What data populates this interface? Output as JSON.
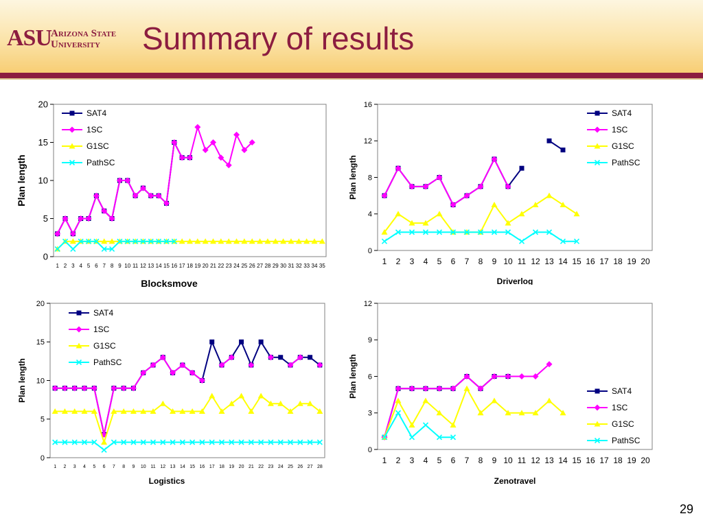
{
  "slide": {
    "title": "Summary of results",
    "page_number": "29"
  },
  "logo": {
    "initials": "ASU",
    "line1": "Arizona State",
    "line2": "University"
  },
  "colors": {
    "SAT4": "#000080",
    "1SC": "#ff00ff",
    "G1SC": "#ffff00",
    "PathSC": "#00ffff",
    "brand": "#8c1d40"
  },
  "chart_data": [
    {
      "type": "line",
      "title": "Blocksmove",
      "ylabel": "Plan length",
      "xlabel": "",
      "ylim": [
        0,
        20
      ],
      "yticks": [
        0,
        5,
        10,
        15,
        20
      ],
      "categories": [
        "1",
        "2",
        "3",
        "4",
        "5",
        "6",
        "7",
        "8",
        "9",
        "10",
        "11",
        "12",
        "13",
        "14",
        "15",
        "16",
        "17",
        "18",
        "19",
        "20",
        "21",
        "22",
        "23",
        "24",
        "25",
        "26",
        "27",
        "28",
        "29",
        "30",
        "31",
        "32",
        "33",
        "34",
        "35"
      ],
      "legend": "top-left",
      "grid": false,
      "series": [
        {
          "name": "SAT4",
          "values": [
            3,
            5,
            3,
            5,
            5,
            8,
            6,
            5,
            10,
            10,
            8,
            9,
            8,
            8,
            7,
            15,
            13,
            13,
            null,
            null,
            null,
            null,
            null,
            null,
            null,
            null,
            null,
            null,
            null,
            null,
            null,
            null,
            null,
            null,
            null
          ]
        },
        {
          "name": "1SC",
          "values": [
            3,
            5,
            3,
            5,
            5,
            8,
            6,
            5,
            10,
            10,
            8,
            9,
            8,
            8,
            7,
            15,
            13,
            13,
            17,
            14,
            15,
            13,
            12,
            16,
            14,
            15,
            null,
            null,
            null,
            null,
            null,
            null,
            null,
            null,
            null
          ]
        },
        {
          "name": "G1SC",
          "values": [
            1,
            2,
            2,
            2,
            2,
            2,
            2,
            2,
            2,
            2,
            2,
            2,
            2,
            2,
            2,
            2,
            2,
            2,
            2,
            2,
            2,
            2,
            2,
            2,
            2,
            2,
            2,
            2,
            2,
            2,
            2,
            2,
            2,
            2,
            2
          ]
        },
        {
          "name": "PathSC",
          "values": [
            1,
            2,
            1,
            2,
            2,
            2,
            1,
            1,
            2,
            2,
            2,
            2,
            2,
            2,
            2,
            2,
            null,
            null,
            null,
            null,
            null,
            null,
            null,
            null,
            null,
            null,
            null,
            null,
            null,
            null,
            null,
            null,
            null,
            null,
            null
          ]
        }
      ]
    },
    {
      "type": "line",
      "title": "Driverlog",
      "ylabel": "Plan length",
      "xlabel": "",
      "ylim": [
        0,
        16
      ],
      "yticks": [
        0,
        4,
        8,
        12,
        16
      ],
      "categories": [
        "1",
        "2",
        "3",
        "4",
        "5",
        "6",
        "7",
        "8",
        "9",
        "10",
        "11",
        "12",
        "13",
        "14",
        "15",
        "16",
        "17",
        "18",
        "19",
        "20"
      ],
      "legend": "top-right",
      "grid": false,
      "series": [
        {
          "name": "SAT4",
          "values": [
            6,
            9,
            7,
            7,
            8,
            5,
            6,
            7,
            10,
            7,
            9,
            null,
            12,
            11,
            null,
            null,
            null,
            null,
            null,
            null
          ]
        },
        {
          "name": "1SC",
          "values": [
            6,
            9,
            7,
            7,
            8,
            5,
            6,
            7,
            10,
            7,
            null,
            null,
            null,
            null,
            null,
            null,
            null,
            null,
            null,
            null
          ]
        },
        {
          "name": "G1SC",
          "values": [
            2,
            4,
            3,
            3,
            4,
            2,
            2,
            2,
            5,
            3,
            4,
            5,
            6,
            5,
            4,
            null,
            null,
            null,
            null,
            null
          ]
        },
        {
          "name": "PathSC",
          "values": [
            1,
            2,
            2,
            2,
            2,
            2,
            2,
            2,
            2,
            2,
            1,
            2,
            2,
            1,
            1,
            null,
            null,
            null,
            null,
            null
          ]
        }
      ]
    },
    {
      "type": "line",
      "title": "Logistics",
      "ylabel": "Plan length",
      "xlabel": "",
      "ylim": [
        0,
        20
      ],
      "yticks": [
        0,
        5,
        10,
        15,
        20
      ],
      "categories": [
        "1",
        "2",
        "3",
        "4",
        "5",
        "6",
        "7",
        "8",
        "9",
        "10",
        "11",
        "12",
        "13",
        "14",
        "15",
        "16",
        "17",
        "18",
        "19",
        "20",
        "21",
        "22",
        "23",
        "24",
        "25",
        "26",
        "27",
        "28"
      ],
      "legend": "top-left",
      "grid": false,
      "series": [
        {
          "name": "SAT4",
          "values": [
            9,
            9,
            9,
            9,
            9,
            3,
            9,
            9,
            9,
            11,
            12,
            13,
            11,
            12,
            11,
            10,
            15,
            12,
            13,
            15,
            12,
            15,
            13,
            13,
            12,
            13,
            13,
            12
          ]
        },
        {
          "name": "1SC",
          "values": [
            9,
            9,
            9,
            9,
            9,
            3,
            9,
            9,
            9,
            11,
            12,
            13,
            11,
            12,
            11,
            10,
            null,
            12,
            13,
            null,
            12,
            null,
            13,
            null,
            12,
            13,
            null,
            12
          ]
        },
        {
          "name": "G1SC",
          "values": [
            6,
            6,
            6,
            6,
            6,
            2,
            6,
            6,
            6,
            6,
            6,
            7,
            6,
            6,
            6,
            6,
            8,
            6,
            7,
            8,
            6,
            8,
            7,
            7,
            6,
            7,
            7,
            6
          ]
        },
        {
          "name": "PathSC",
          "values": [
            2,
            2,
            2,
            2,
            2,
            1,
            2,
            2,
            2,
            2,
            2,
            2,
            2,
            2,
            2,
            2,
            2,
            2,
            2,
            2,
            2,
            2,
            2,
            2,
            2,
            2,
            2,
            2
          ]
        }
      ]
    },
    {
      "type": "line",
      "title": "Zenotravel",
      "ylabel": "Plan length",
      "xlabel": "",
      "ylim": [
        0,
        12
      ],
      "yticks": [
        0,
        3,
        6,
        9,
        12
      ],
      "categories": [
        "1",
        "2",
        "3",
        "4",
        "5",
        "6",
        "7",
        "8",
        "9",
        "10",
        "11",
        "12",
        "13",
        "14",
        "15",
        "16",
        "17",
        "18",
        "19",
        "20"
      ],
      "legend": "bottom-right",
      "grid": false,
      "series": [
        {
          "name": "SAT4",
          "values": [
            1,
            5,
            5,
            5,
            5,
            5,
            6,
            5,
            6,
            6,
            null,
            null,
            null,
            null,
            null,
            null,
            null,
            null,
            null,
            null
          ]
        },
        {
          "name": "1SC",
          "values": [
            1,
            5,
            5,
            5,
            5,
            5,
            6,
            5,
            6,
            6,
            6,
            6,
            7,
            null,
            null,
            null,
            null,
            null,
            null,
            null
          ]
        },
        {
          "name": "G1SC",
          "values": [
            1,
            4,
            2,
            4,
            3,
            2,
            5,
            3,
            4,
            3,
            3,
            3,
            4,
            3,
            null,
            null,
            null,
            null,
            null,
            null
          ]
        },
        {
          "name": "PathSC",
          "values": [
            1,
            3,
            1,
            2,
            1,
            1,
            null,
            null,
            null,
            null,
            null,
            null,
            null,
            null,
            null,
            null,
            null,
            null,
            null,
            null
          ]
        }
      ]
    }
  ]
}
